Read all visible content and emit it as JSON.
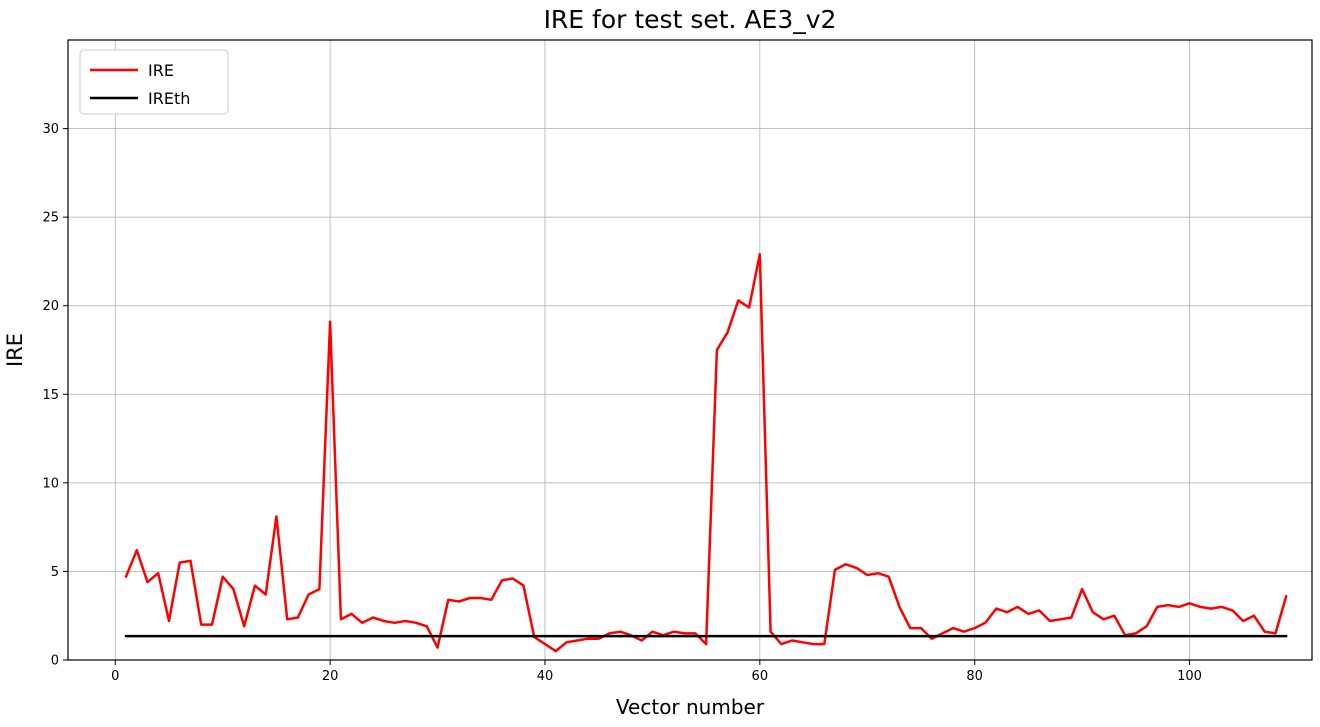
{
  "figure": {
    "background": "#ffffff",
    "axes_border_color": "#000000",
    "grid_color": "#b8b8b8",
    "tick_color": "#000000",
    "legend_border_color": "#cccccc"
  },
  "chart_data": {
    "type": "line",
    "title": "IRE for test set. AE3_v2",
    "xlabel": "Vector number",
    "ylabel": "IRE",
    "xlim": [
      -4.4,
      111.4
    ],
    "ylim": [
      0,
      35
    ],
    "xticks": [
      0,
      20,
      40,
      60,
      80,
      100
    ],
    "yticks": [
      0,
      5,
      10,
      15,
      20,
      25,
      30
    ],
    "grid": true,
    "legend": {
      "position": "upper left"
    },
    "x_start": 1,
    "series": [
      {
        "name": "IRE",
        "color": "#ff0000",
        "line_width": 2.5,
        "values": [
          4.7,
          6.2,
          4.4,
          4.9,
          2.2,
          5.5,
          5.6,
          2.0,
          2.0,
          4.7,
          4.0,
          1.9,
          4.2,
          3.7,
          8.1,
          2.3,
          2.4,
          3.7,
          4.0,
          19.1,
          2.3,
          2.6,
          2.1,
          2.4,
          2.2,
          2.1,
          2.2,
          2.1,
          1.9,
          0.7,
          3.4,
          3.3,
          3.5,
          3.5,
          3.4,
          4.5,
          4.6,
          4.2,
          1.3,
          0.9,
          0.5,
          1.0,
          1.1,
          1.2,
          1.2,
          1.5,
          1.6,
          1.4,
          1.1,
          1.6,
          1.4,
          1.6,
          1.5,
          1.5,
          0.9,
          17.5,
          18.5,
          20.3,
          19.9,
          22.9,
          1.6,
          0.9,
          1.1,
          1.0,
          0.9,
          0.9,
          5.1,
          5.4,
          5.2,
          4.8,
          4.9,
          4.7,
          3.0,
          1.8,
          1.8,
          1.2,
          1.5,
          1.8,
          1.6,
          1.8,
          2.1,
          2.9,
          2.7,
          3.0,
          2.6,
          2.8,
          2.2,
          2.3,
          2.4,
          4.0,
          2.7,
          2.3,
          2.5,
          1.4,
          1.5,
          1.9,
          3.0,
          3.1,
          3.0,
          3.2,
          3.0,
          2.9,
          3.0,
          2.8,
          2.2,
          2.5,
          1.6,
          1.5,
          3.6
        ]
      },
      {
        "name": "IREth",
        "color": "#000000",
        "line_width": 2.5,
        "constant": 1.35,
        "x_range": [
          1,
          109
        ]
      }
    ]
  }
}
